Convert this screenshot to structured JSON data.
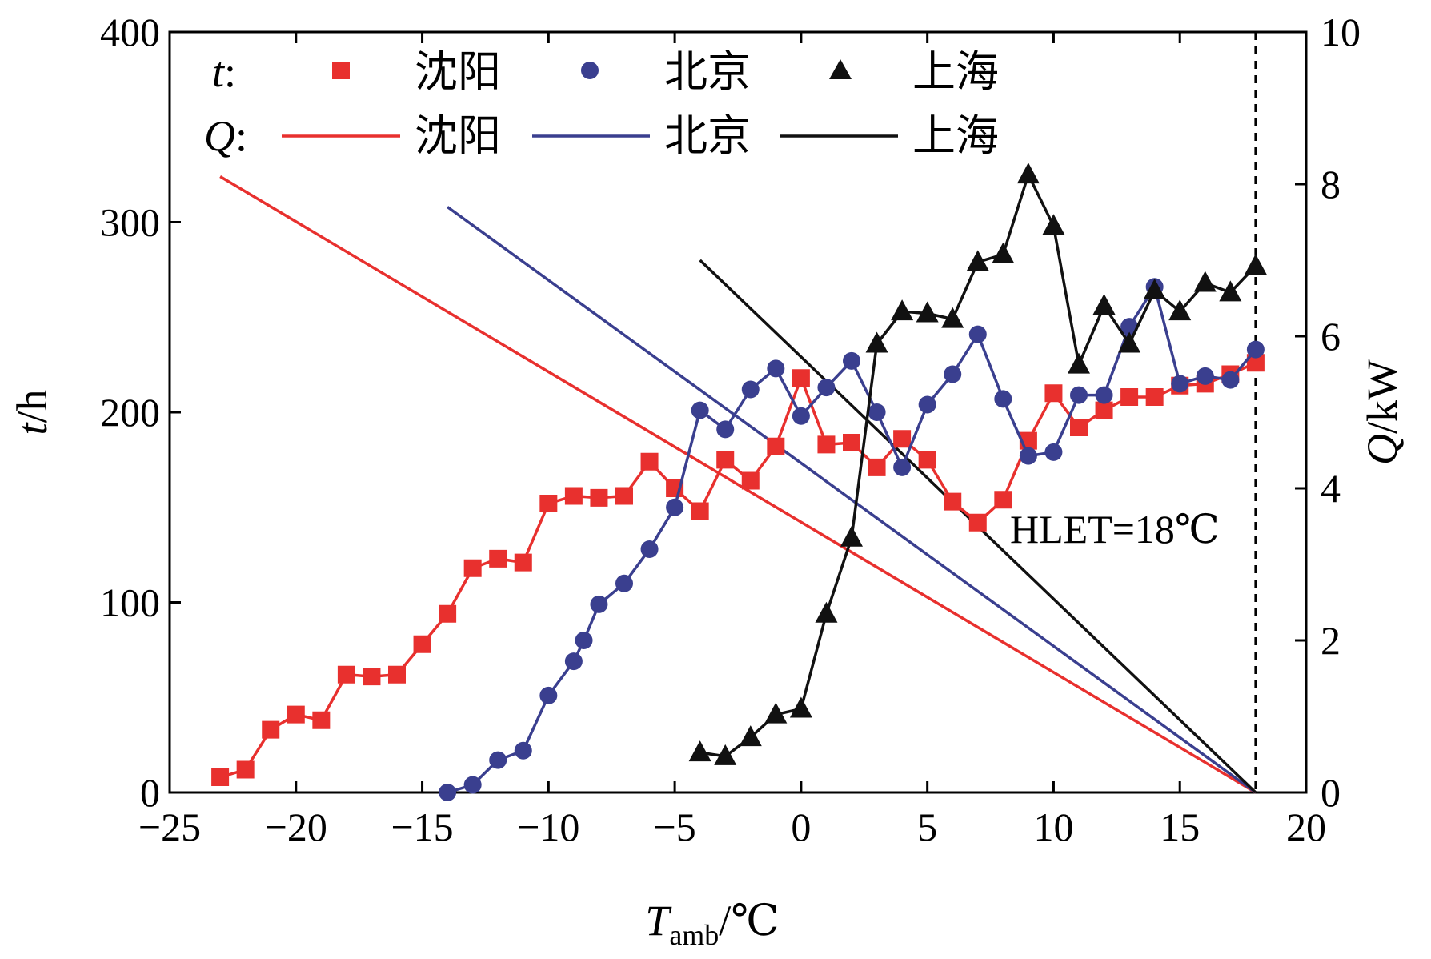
{
  "chart_data": {
    "type": "line",
    "xlabel": {
      "main": "T",
      "sub": "amb",
      "unit": "/℃"
    },
    "ylabel_left": {
      "main": "t",
      "unit": "/h"
    },
    "ylabel_right": {
      "main": "Q",
      "unit": "/kW"
    },
    "xlim": [
      -25,
      20
    ],
    "ylim_left": [
      0,
      400
    ],
    "ylim_right": [
      0,
      10
    ],
    "xticks": [
      "−25",
      "−20",
      "−15",
      "−10",
      "−5",
      "0",
      "5",
      "10",
      "15",
      "20"
    ],
    "xtick_values": [
      -25,
      -20,
      -15,
      -10,
      -5,
      0,
      5,
      10,
      15,
      20
    ],
    "yticks_left": [
      "0",
      "100",
      "200",
      "300",
      "400"
    ],
    "ytick_values_left": [
      0,
      100,
      200,
      300,
      400
    ],
    "yticks_right": [
      "0",
      "2",
      "4",
      "6",
      "8",
      "10"
    ],
    "ytick_values_right": [
      0,
      2,
      4,
      6,
      8,
      10
    ],
    "legend": {
      "t_prefix": "t",
      "q_prefix": "Q",
      "colon": ":",
      "t_entries": [
        "沈阳",
        "北京",
        "上海"
      ],
      "q_entries": [
        "沈阳",
        "北京",
        "上海"
      ]
    },
    "annotation": {
      "text": "HLET=18℃",
      "x": 18
    },
    "colors": {
      "shenyang": "#e8302e",
      "beijing": "#3a3f8f",
      "shanghai": "#111111"
    },
    "series_t": [
      {
        "name": "沈阳",
        "marker": "square",
        "color": "#e8302e",
        "x": [
          -23,
          -22,
          -21,
          -20,
          -19,
          -18,
          -17,
          -16,
          -15,
          -14,
          -13,
          -12,
          -11,
          -10,
          -9,
          -8,
          -7,
          -6,
          -5,
          -4,
          -3,
          -2,
          -1,
          0,
          1,
          2,
          3,
          4,
          5,
          6,
          7,
          8,
          9,
          10,
          11,
          12,
          13,
          14,
          15,
          16,
          17,
          18
        ],
        "y": [
          8,
          12,
          33,
          41,
          38,
          62,
          61,
          62,
          78,
          94,
          118,
          123,
          121,
          152,
          156,
          155,
          156,
          174,
          160,
          148,
          175,
          164,
          182,
          218,
          183,
          184,
          171,
          186,
          175,
          153,
          142,
          154,
          185,
          210,
          192,
          201,
          208,
          208,
          214,
          215,
          220,
          226
        ]
      },
      {
        "name": "北京",
        "marker": "circle",
        "color": "#3a3f8f",
        "x": [
          -14,
          -13,
          -12,
          -11,
          -10,
          -9,
          -8.6,
          -8,
          -7,
          -6,
          -5,
          -4,
          -3,
          -2,
          -1,
          0,
          1,
          2,
          3,
          4,
          5,
          6,
          7,
          8,
          9,
          10,
          11,
          12,
          13,
          14,
          15,
          16,
          17,
          18
        ],
        "y": [
          0,
          4,
          17,
          22,
          51,
          69,
          80,
          99,
          110,
          128,
          150,
          201,
          191,
          212,
          223,
          198,
          213,
          227,
          200,
          171,
          204,
          220,
          241,
          207,
          177,
          179,
          209,
          209,
          245,
          266,
          215,
          219,
          217,
          233
        ]
      },
      {
        "name": "上海",
        "marker": "triangle",
        "color": "#111111",
        "x": [
          -4,
          -3,
          -2,
          -1,
          0,
          1,
          2,
          3,
          4,
          5,
          6,
          7,
          8,
          9,
          10,
          11,
          12,
          13,
          14,
          15,
          16,
          17,
          18
        ],
        "y": [
          21,
          19,
          29,
          41,
          44,
          94,
          134,
          236,
          253,
          252,
          249,
          279,
          283,
          325,
          298,
          225,
          256,
          236,
          264,
          253,
          268,
          263,
          277
        ]
      }
    ],
    "series_q": [
      {
        "name": "沈阳",
        "color": "#e8302e",
        "x": [
          -23,
          18
        ],
        "y": [
          8.1,
          0
        ]
      },
      {
        "name": "北京",
        "color": "#3a3f8f",
        "x": [
          -14,
          18
        ],
        "y": [
          7.7,
          0
        ]
      },
      {
        "name": "上海",
        "color": "#111111",
        "x": [
          -4,
          18
        ],
        "y": [
          7.0,
          0
        ]
      }
    ]
  }
}
